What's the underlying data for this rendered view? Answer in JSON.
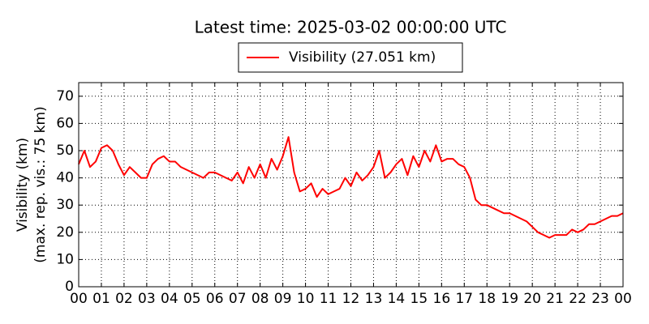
{
  "chart_data": {
    "type": "line",
    "title": "Latest time: 2025-03-02 00:00:00 UTC",
    "ylabel": [
      "Visibility (km)",
      "(max. rep. vis.: 75 km)"
    ],
    "x": [
      0,
      0.25,
      0.5,
      0.75,
      1,
      1.25,
      1.5,
      1.75,
      2,
      2.25,
      2.5,
      2.75,
      3,
      3.25,
      3.5,
      3.75,
      4,
      4.25,
      4.5,
      4.75,
      5,
      5.25,
      5.5,
      5.75,
      6,
      6.25,
      6.5,
      6.75,
      7,
      7.25,
      7.5,
      7.75,
      8,
      8.25,
      8.5,
      8.75,
      9,
      9.25,
      9.5,
      9.75,
      10,
      10.25,
      10.5,
      10.75,
      11,
      11.25,
      11.5,
      11.75,
      12,
      12.25,
      12.5,
      12.75,
      13,
      13.25,
      13.5,
      13.75,
      14,
      14.25,
      14.5,
      14.75,
      15,
      15.25,
      15.5,
      15.75,
      16,
      16.25,
      16.5,
      16.75,
      17,
      17.25,
      17.5,
      17.75,
      18,
      18.25,
      18.5,
      18.75,
      19,
      19.25,
      19.5,
      19.75,
      20,
      20.25,
      20.5,
      20.75,
      21,
      21.25,
      21.5,
      21.75,
      22,
      22.25,
      22.5,
      22.75,
      23,
      23.25,
      23.5,
      23.75,
      24
    ],
    "series": [
      {
        "name": "Visibility (27.051 km)",
        "color": "#ff0000",
        "values": [
          45,
          50,
          44,
          46,
          51,
          52,
          50,
          45,
          41,
          44,
          42,
          40,
          40,
          45,
          47,
          48,
          46,
          46,
          44,
          43,
          42,
          41,
          40,
          42,
          42,
          41,
          40,
          39,
          42,
          38,
          44,
          40,
          45,
          40,
          47,
          43,
          48,
          55,
          42,
          35,
          36,
          38,
          33,
          36,
          34,
          35,
          36,
          40,
          37,
          42,
          39,
          41,
          44,
          50,
          40,
          42,
          45,
          47,
          41,
          48,
          44,
          50,
          46,
          52,
          46,
          47,
          47,
          45,
          44,
          40,
          32,
          30,
          30,
          29,
          28,
          27,
          27,
          26,
          25,
          24,
          22,
          20,
          19,
          18,
          19,
          19,
          19,
          21,
          20,
          21,
          23,
          23,
          24,
          25,
          26,
          26,
          27
        ]
      }
    ],
    "xlim": [
      0,
      24
    ],
    "xticks": [
      {
        "value": 0,
        "label": "00"
      },
      {
        "value": 1,
        "label": "01"
      },
      {
        "value": 2,
        "label": "02"
      },
      {
        "value": 3,
        "label": "03"
      },
      {
        "value": 4,
        "label": "04"
      },
      {
        "value": 5,
        "label": "05"
      },
      {
        "value": 6,
        "label": "06"
      },
      {
        "value": 7,
        "label": "07"
      },
      {
        "value": 8,
        "label": "08"
      },
      {
        "value": 9,
        "label": "09"
      },
      {
        "value": 10,
        "label": "10"
      },
      {
        "value": 11,
        "label": "11"
      },
      {
        "value": 12,
        "label": "12"
      },
      {
        "value": 13,
        "label": "13"
      },
      {
        "value": 14,
        "label": "14"
      },
      {
        "value": 15,
        "label": "15"
      },
      {
        "value": 16,
        "label": "16"
      },
      {
        "value": 17,
        "label": "17"
      },
      {
        "value": 18,
        "label": "18"
      },
      {
        "value": 19,
        "label": "19"
      },
      {
        "value": 20,
        "label": "20"
      },
      {
        "value": 21,
        "label": "21"
      },
      {
        "value": 22,
        "label": "22"
      },
      {
        "value": 23,
        "label": "23"
      },
      {
        "value": 24,
        "label": "00"
      }
    ],
    "ylim": [
      0,
      75
    ],
    "yticks": [
      0,
      10,
      20,
      30,
      40,
      50,
      60,
      70
    ],
    "grid": true,
    "legend": "top"
  }
}
